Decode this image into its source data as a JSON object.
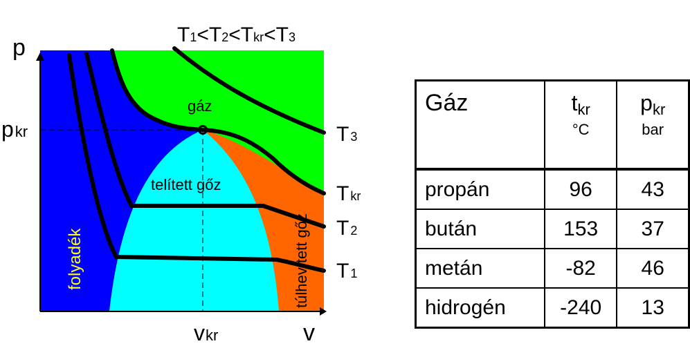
{
  "diagram": {
    "p_axis": "p",
    "v_axis": "v",
    "p_kr": {
      "main": "p",
      "sub": "kr"
    },
    "v_kr": {
      "main": "v",
      "sub": "kr"
    },
    "temperature_order": {
      "t1": "T",
      "s1": "1",
      "lt1": "<",
      "t2": "T",
      "s2": "2",
      "lt2": "<",
      "t3": "T",
      "s3": "kr",
      "lt3": "<",
      "t4": "T",
      "s4": "3"
    },
    "regions": {
      "gas": "gáz",
      "saturated_vapor": "telített gőz",
      "liquid": "folyadék",
      "superheated_vapor": "túlhevített gőz"
    },
    "isotherms": {
      "T3": {
        "main": "T",
        "sub": "3"
      },
      "Tkr": {
        "main": "T",
        "sub": "kr"
      },
      "T2": {
        "main": "T",
        "sub": "2"
      },
      "T1": {
        "main": "T",
        "sub": "1"
      }
    },
    "colors": {
      "gas": "#00ff00",
      "liquid": "#0000ff",
      "saturated": "#00ffff",
      "superheated": "#ff6600",
      "liquid_label": "#ffff00"
    }
  },
  "table": {
    "header": {
      "name": "Gáz",
      "t_main": "t",
      "t_sub": "kr",
      "t_unit": "°C",
      "p_main": "p",
      "p_sub": "kr",
      "p_unit": "bar"
    },
    "rows": [
      {
        "name": "propán",
        "t": "96",
        "p": "43"
      },
      {
        "name": "bután",
        "t": "153",
        "p": "37"
      },
      {
        "name": "metán",
        "t": "-82",
        "p": "46"
      },
      {
        "name": "hidrogén",
        "t": "-240",
        "p": "13"
      }
    ]
  }
}
